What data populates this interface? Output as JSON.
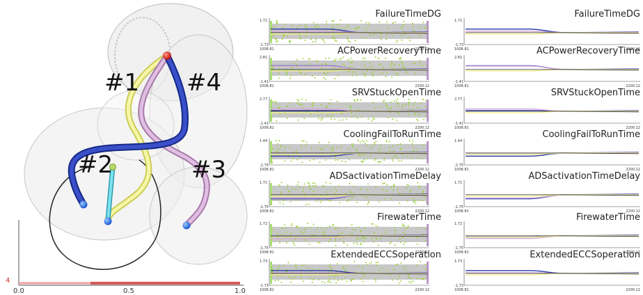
{
  "view3d": {
    "labels": [
      "#1",
      "#2",
      "#3",
      "#4"
    ],
    "axis": {
      "y_tick": "4",
      "x_ticks": [
        "0.0",
        "0.5",
        "1.0"
      ]
    }
  },
  "panels": [
    {
      "title": "FailureTimeDG",
      "ymax": "1.71",
      "ymin": "-1.73"
    },
    {
      "title": "ACPowerRecoveryTime",
      "ymax": "2.81",
      "ymin": "-1.41"
    },
    {
      "title": "SRVStuckOpenTime",
      "ymax": "2.77",
      "ymin": "-1.41"
    },
    {
      "title": "CoolingFailToRunTime",
      "ymax": "1.44",
      "ymin": "-2.75"
    },
    {
      "title": "ADSactivationTimeDelay",
      "ymax": "1.71",
      "ymin": "-1.75"
    },
    {
      "title": "FirewaterTime",
      "ymax": "1.72",
      "ymin": "-1.75"
    },
    {
      "title": "ExtendedECCSoperation",
      "ymax": "1.73",
      "ymin": "-1.73"
    }
  ],
  "x_range": {
    "min": "1008.81",
    "max": "2200.12"
  },
  "colors": {
    "line1": "#f0f08a",
    "line2": "#3fb8c8",
    "line3": "#d5a8d8",
    "line4": "#2436a8",
    "scatter": "#9bd13b"
  }
}
